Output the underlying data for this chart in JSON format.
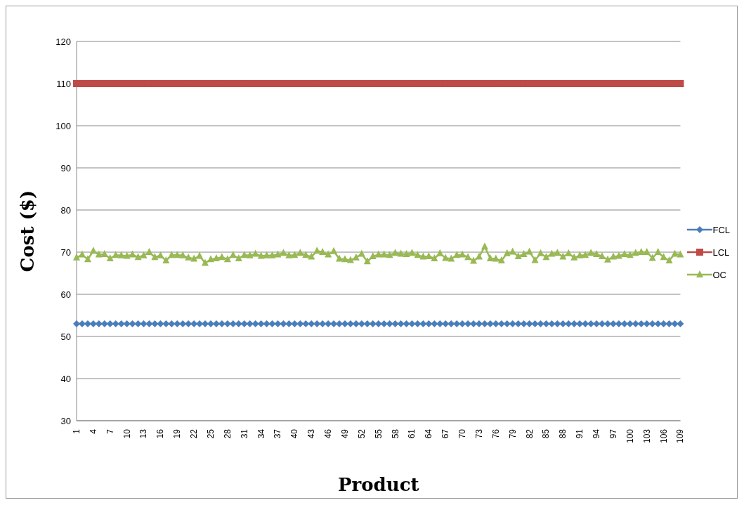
{
  "chart_data": {
    "type": "line",
    "xlabel": "Product",
    "ylabel": "Cost ($)",
    "categories": [
      "1",
      null,
      null,
      "4",
      null,
      null,
      "7",
      null,
      null,
      "10",
      null,
      null,
      "13",
      null,
      null,
      "16",
      null,
      null,
      "19",
      null,
      null,
      "22",
      null,
      null,
      "25",
      null,
      null,
      "28",
      null,
      null,
      "31",
      null,
      null,
      "34",
      null,
      null,
      "37",
      null,
      null,
      "40",
      null,
      null,
      "43",
      null,
      null,
      "46",
      null,
      null,
      "49",
      null,
      null,
      "52",
      null,
      null,
      "55",
      null,
      null,
      "58",
      null,
      null,
      "61",
      null,
      null,
      "64",
      null,
      null,
      "67",
      null,
      null,
      "70",
      null,
      null,
      "73",
      null,
      null,
      "76",
      null,
      null,
      "79",
      null,
      null,
      "82",
      null,
      null,
      "85",
      null,
      null,
      "88",
      null,
      null,
      "91",
      null,
      null,
      "94",
      null,
      null,
      "97",
      null,
      null,
      "100",
      null,
      null,
      "103",
      null,
      null,
      "106",
      null,
      null,
      "109"
    ],
    "series": [
      {
        "name": "FCL",
        "color": "#4a7ebb",
        "marker": "diamond",
        "values": [
          53,
          53,
          53,
          53,
          53,
          53,
          53,
          53,
          53,
          53,
          53,
          53,
          53,
          53,
          53,
          53,
          53,
          53,
          53,
          53,
          53,
          53,
          53,
          53,
          53,
          53,
          53,
          53,
          53,
          53,
          53,
          53,
          53,
          53,
          53,
          53,
          53,
          53,
          53,
          53,
          53,
          53,
          53,
          53,
          53,
          53,
          53,
          53,
          53,
          53,
          53,
          53,
          53,
          53,
          53,
          53,
          53,
          53,
          53,
          53,
          53,
          53,
          53,
          53,
          53,
          53,
          53,
          53,
          53,
          53,
          53,
          53,
          53,
          53,
          53,
          53,
          53,
          53,
          53,
          53,
          53,
          53,
          53,
          53,
          53,
          53,
          53,
          53,
          53,
          53,
          53,
          53,
          53,
          53,
          53,
          53,
          53,
          53,
          53,
          53,
          53,
          53,
          53,
          53,
          53,
          53,
          53,
          53,
          53
        ]
      },
      {
        "name": "LCL",
        "color": "#be4b48",
        "marker": "square",
        "values": [
          110,
          110,
          110,
          110,
          110,
          110,
          110,
          110,
          110,
          110,
          110,
          110,
          110,
          110,
          110,
          110,
          110,
          110,
          110,
          110,
          110,
          110,
          110,
          110,
          110,
          110,
          110,
          110,
          110,
          110,
          110,
          110,
          110,
          110,
          110,
          110,
          110,
          110,
          110,
          110,
          110,
          110,
          110,
          110,
          110,
          110,
          110,
          110,
          110,
          110,
          110,
          110,
          110,
          110,
          110,
          110,
          110,
          110,
          110,
          110,
          110,
          110,
          110,
          110,
          110,
          110,
          110,
          110,
          110,
          110,
          110,
          110,
          110,
          110,
          110,
          110,
          110,
          110,
          110,
          110,
          110,
          110,
          110,
          110,
          110,
          110,
          110,
          110,
          110,
          110,
          110,
          110,
          110,
          110,
          110,
          110,
          110,
          110,
          110,
          110,
          110,
          110,
          110,
          110,
          110,
          110,
          110,
          110,
          110
        ]
      },
      {
        "name": "OC",
        "color": "#98b954",
        "marker": "triangle",
        "values": [
          68.7,
          69.4,
          68.3,
          70.3,
          69.4,
          69.5,
          68.5,
          69.3,
          69.2,
          69.1,
          69.4,
          68.8,
          69.2,
          70,
          68.8,
          69.2,
          68,
          69.3,
          69.3,
          69.2,
          68.7,
          68.4,
          69.1,
          67.4,
          68.3,
          68.5,
          68.8,
          68.3,
          69.3,
          68.5,
          69.3,
          69.2,
          69.6,
          69.1,
          69.2,
          69.2,
          69.4,
          69.8,
          69.2,
          69.3,
          69.8,
          69.3,
          68.9,
          70.3,
          70,
          69.4,
          70.2,
          68.4,
          68.3,
          68.1,
          68.7,
          69.6,
          67.8,
          69,
          69.4,
          69.4,
          69.3,
          69.8,
          69.6,
          69.5,
          69.8,
          69.3,
          68.9,
          69,
          68.5,
          69.7,
          68.6,
          68.4,
          69.3,
          69.4,
          68.8,
          67.9,
          68.9,
          71.3,
          68.5,
          68.4,
          68,
          69.7,
          70.1,
          69,
          69.5,
          70.1,
          68.1,
          69.7,
          68.8,
          69.6,
          69.8,
          68.9,
          69.7,
          68.7,
          69.2,
          69.3,
          69.8,
          69.5,
          69,
          68.2,
          68.9,
          69.1,
          69.5,
          69.3,
          69.8,
          70,
          70,
          68.6,
          70,
          68.8,
          68,
          69.6,
          69.4
        ]
      }
    ],
    "ylim": [
      30,
      120
    ],
    "yticks": [
      30,
      40,
      50,
      60,
      70,
      80,
      90,
      100,
      110,
      120
    ],
    "grid": "y",
    "legend": "right"
  }
}
